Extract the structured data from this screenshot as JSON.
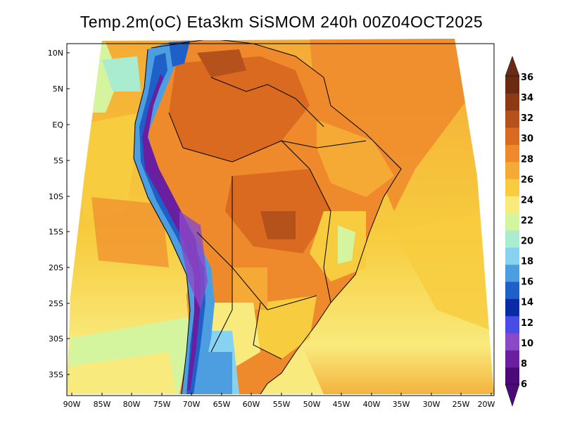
{
  "title": "Temp.2m(oC) Eta3km SiSMOM 240h 00Z04OCT2025",
  "axes": {
    "latitude_labels": [
      "10N",
      "5N",
      "EQ",
      "5S",
      "10S",
      "15S",
      "20S",
      "25S",
      "30S",
      "35S"
    ],
    "longitude_labels": [
      "90W",
      "85W",
      "80W",
      "75W",
      "70W",
      "65W",
      "60W",
      "55W",
      "50W",
      "45W",
      "40W",
      "35W",
      "30W",
      "25W",
      "20W"
    ]
  },
  "colorbar": {
    "labels": [
      "36",
      "34",
      "32",
      "30",
      "28",
      "26",
      "24",
      "22",
      "20",
      "18",
      "16",
      "14",
      "12",
      "10",
      "8",
      "6"
    ],
    "colors": [
      "#6b2a12",
      "#8c3a14",
      "#b5521c",
      "#d96a1f",
      "#ef8a2c",
      "#f4aa35",
      "#f7cc3e",
      "#f8ea7c",
      "#d4f59e",
      "#a9ecd0",
      "#86d2f0",
      "#4d9ee0",
      "#1f5fc8",
      "#0a2aa8",
      "#4a4ce8",
      "#8a4ac8",
      "#6a1ea0",
      "#4a0a78"
    ]
  },
  "chart_data": {
    "type": "heatmap",
    "title": "Temp.2m(oC) Eta3km SiSMOM 240h 00Z04OCT2025",
    "variable": "Temp.2m",
    "units": "oC",
    "model": "Eta3km SiSMOM",
    "forecast_hour": "240h",
    "init": "00Z04OCT2025",
    "lon_range": [
      -90,
      -20
    ],
    "lat_range": [
      -37,
      12
    ],
    "color_levels": [
      6,
      8,
      10,
      12,
      14,
      16,
      18,
      20,
      22,
      24,
      26,
      28,
      30,
      32,
      34,
      36
    ]
  }
}
